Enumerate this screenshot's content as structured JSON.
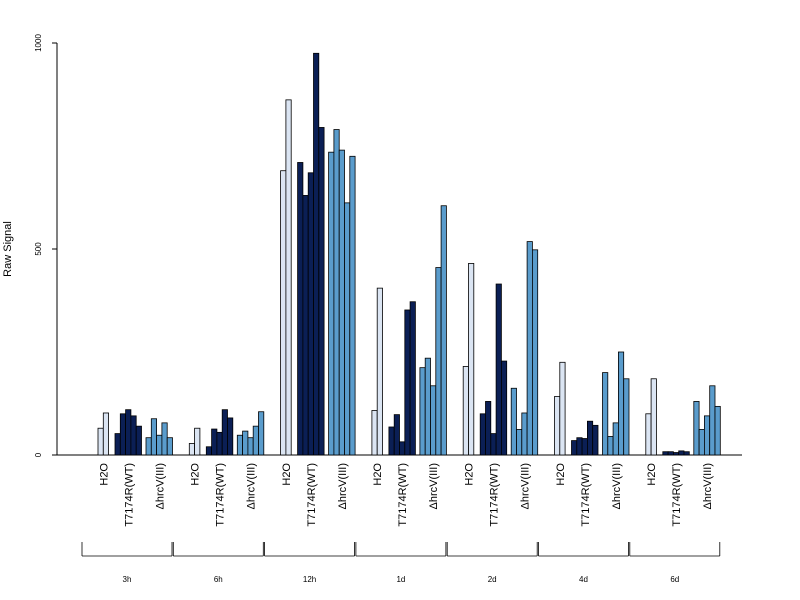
{
  "chart_data": {
    "type": "bar",
    "ylabel": "Raw Signal",
    "ylim": [
      0,
      1000
    ],
    "yticks": [
      0,
      500,
      1000
    ],
    "conditions": [
      {
        "name": "H2O",
        "color": "#dbe5f3"
      },
      {
        "name": "T7174R(WT)",
        "color": "#0b1f55"
      },
      {
        "name": "ΔhrcV(III)",
        "color": "#5a9ccc"
      }
    ],
    "timepoints": [
      {
        "name": "3h",
        "groups": [
          [
            65,
            102
          ],
          [
            52,
            100,
            110,
            95,
            70
          ],
          [
            42,
            88,
            48,
            78,
            42
          ]
        ]
      },
      {
        "name": "6h",
        "groups": [
          [
            28,
            65
          ],
          [
            20,
            63,
            55,
            110,
            90
          ],
          [
            48,
            58,
            42,
            70,
            105
          ]
        ]
      },
      {
        "name": "12h",
        "groups": [
          [
            690,
            862
          ],
          [
            710,
            630,
            685,
            975,
            795
          ],
          [
            735,
            790,
            740,
            612,
            725
          ]
        ]
      },
      {
        "name": "1d",
        "groups": [
          [
            108,
            405
          ],
          [
            68,
            98,
            32,
            352,
            372
          ],
          [
            212,
            235,
            168,
            455,
            605
          ]
        ]
      },
      {
        "name": "2d",
        "groups": [
          [
            215,
            465
          ],
          [
            100,
            130,
            52,
            415,
            228
          ],
          [
            162,
            62,
            102,
            518,
            498
          ]
        ]
      },
      {
        "name": "4d",
        "groups": [
          [
            142,
            225
          ],
          [
            35,
            42,
            40,
            82,
            72
          ],
          [
            200,
            45,
            78,
            250,
            185
          ]
        ]
      },
      {
        "name": "6d",
        "groups": [
          [
            100,
            185
          ],
          [
            8,
            8,
            6,
            10,
            8
          ],
          [
            130,
            62,
            95,
            168,
            118
          ]
        ]
      }
    ]
  }
}
